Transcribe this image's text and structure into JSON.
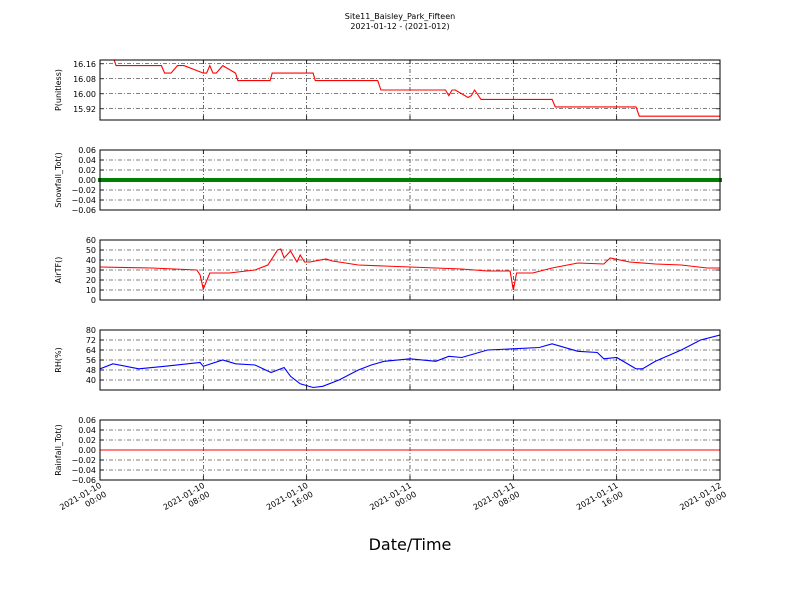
{
  "figure": {
    "title": "Site11_Baisley_Park_Fifteen",
    "subtitle": "2021-01-12 - (2021-012)",
    "xlabel": "Date/Time"
  },
  "x_axis": {
    "range": [
      "2021-01-10 00:00",
      "2021-01-12 00:00"
    ],
    "ticks": [
      {
        "line1": "2021-01-10",
        "line2": "00:00"
      },
      {
        "line1": "2021-01-10",
        "line2": "08:00"
      },
      {
        "line1": "2021-01-10",
        "line2": "16:00"
      },
      {
        "line1": "2021-01-11",
        "line2": "00:00"
      },
      {
        "line1": "2021-01-11",
        "line2": "08:00"
      },
      {
        "line1": "2021-01-11",
        "line2": "16:00"
      },
      {
        "line1": "2021-01-12",
        "line2": "00:00"
      }
    ]
  },
  "chart_data": [
    {
      "type": "line",
      "ylabel": "P(unitless)",
      "ylim": [
        15.86,
        16.18
      ],
      "yticks": [
        "16.16",
        "16.08",
        "16.00",
        "15.92"
      ],
      "ytick_values": [
        16.16,
        16.08,
        16.0,
        15.92
      ],
      "grid": true,
      "series": [
        {
          "color": "#ff0000",
          "x": [
            "2021-01-10 00:00",
            "2021-01-10 01:00",
            "2021-01-10 01:15",
            "2021-01-10 04:45",
            "2021-01-10 05:00",
            "2021-01-10 05:30",
            "2021-01-10 06:00",
            "2021-01-10 06:30",
            "2021-01-10 08:00",
            "2021-01-10 08:15",
            "2021-01-10 08:30",
            "2021-01-10 08:45",
            "2021-01-10 09:00",
            "2021-01-10 09:30",
            "2021-01-10 10:30",
            "2021-01-10 10:40",
            "2021-01-10 13:10",
            "2021-01-10 13:20",
            "2021-01-10 16:30",
            "2021-01-10 16:40",
            "2021-01-10 21:30",
            "2021-01-10 21:45",
            "2021-01-11 02:45",
            "2021-01-11 03:00",
            "2021-01-11 03:15",
            "2021-01-11 03:30",
            "2021-01-11 04:30",
            "2021-01-11 04:45",
            "2021-01-11 05:00",
            "2021-01-11 05:30",
            "2021-01-11 11:00",
            "2021-01-11 11:15",
            "2021-01-11 17:30",
            "2021-01-11 17:45",
            "2021-01-12 00:00"
          ],
          "values": [
            16.2,
            16.2,
            16.15,
            16.15,
            16.11,
            16.11,
            16.15,
            16.15,
            16.11,
            16.11,
            16.15,
            16.11,
            16.11,
            16.15,
            16.11,
            16.07,
            16.07,
            16.11,
            16.11,
            16.07,
            16.07,
            16.02,
            16.02,
            15.99,
            16.02,
            16.02,
            15.98,
            15.99,
            16.02,
            15.97,
            15.97,
            15.93,
            15.93,
            15.88,
            15.88
          ]
        }
      ]
    },
    {
      "type": "line",
      "ylabel": "Snowfall_Tot()",
      "ylim": [
        -0.06,
        0.06
      ],
      "yticks": [
        "0.06",
        "0.04",
        "0.02",
        "0.00",
        "−0.02",
        "−0.04",
        "−0.06"
      ],
      "ytick_values": [
        0.06,
        0.04,
        0.02,
        0.0,
        -0.02,
        -0.04,
        -0.06
      ],
      "grid": true,
      "series": [
        {
          "color": "#008000",
          "marker": "square",
          "x": [
            "2021-01-10 00:00",
            "2021-01-12 00:00"
          ],
          "values": [
            0.0,
            0.0
          ]
        }
      ]
    },
    {
      "type": "line",
      "ylabel": "AirTF()",
      "ylim": [
        0,
        60
      ],
      "yticks": [
        "60",
        "50",
        "40",
        "30",
        "20",
        "10",
        "0"
      ],
      "ytick_values": [
        60,
        50,
        40,
        30,
        20,
        10,
        0
      ],
      "grid": true,
      "series": [
        {
          "color": "#ff0000",
          "x": [
            "2021-01-10 00:00",
            "2021-01-10 04:00",
            "2021-01-10 07:30",
            "2021-01-10 07:45",
            "2021-01-10 08:00",
            "2021-01-10 08:30",
            "2021-01-10 10:00",
            "2021-01-10 12:00",
            "2021-01-10 13:00",
            "2021-01-10 13:45",
            "2021-01-10 14:00",
            "2021-01-10 14:15",
            "2021-01-10 14:45",
            "2021-01-10 15:15",
            "2021-01-10 15:30",
            "2021-01-10 15:50",
            "2021-01-10 16:15",
            "2021-01-10 17:30",
            "2021-01-10 18:00",
            "2021-01-10 20:00",
            "2021-01-11 00:00",
            "2021-01-11 04:00",
            "2021-01-11 06:00",
            "2021-01-11 07:45",
            "2021-01-11 08:00",
            "2021-01-11 08:15",
            "2021-01-11 09:30",
            "2021-01-11 11:00",
            "2021-01-11 13:00",
            "2021-01-11 15:00",
            "2021-01-11 15:30",
            "2021-01-11 17:00",
            "2021-01-11 19:00",
            "2021-01-11 21:00",
            "2021-01-11 23:00",
            "2021-01-12 00:00"
          ],
          "values": [
            33,
            32,
            30,
            25,
            11,
            27,
            27,
            30,
            35,
            50,
            51,
            42,
            49,
            38,
            45,
            38,
            38,
            41,
            39,
            35,
            33,
            31,
            29,
            29,
            10,
            27,
            27,
            32,
            37,
            36,
            42,
            38,
            36,
            35,
            32,
            32
          ]
        }
      ]
    },
    {
      "type": "line",
      "ylabel": "RH(%)",
      "ylim": [
        32,
        80
      ],
      "yticks": [
        "80",
        "72",
        "64",
        "56",
        "48",
        "40"
      ],
      "ytick_values": [
        80,
        72,
        64,
        56,
        48,
        40
      ],
      "grid": true,
      "series": [
        {
          "color": "#0000ff",
          "x": [
            "2021-01-10 00:00",
            "2021-01-10 01:00",
            "2021-01-10 03:00",
            "2021-01-10 05:00",
            "2021-01-10 07:45",
            "2021-01-10 08:00",
            "2021-01-10 09:30",
            "2021-01-10 10:30",
            "2021-01-10 12:00",
            "2021-01-10 13:15",
            "2021-01-10 14:15",
            "2021-01-10 14:45",
            "2021-01-10 15:30",
            "2021-01-10 16:30",
            "2021-01-10 17:15",
            "2021-01-10 18:30",
            "2021-01-10 20:00",
            "2021-01-10 21:00",
            "2021-01-10 22:00",
            "2021-01-11 00:00",
            "2021-01-11 02:00",
            "2021-01-11 03:00",
            "2021-01-11 04:00",
            "2021-01-11 06:00",
            "2021-01-11 08:00",
            "2021-01-11 10:00",
            "2021-01-11 11:00",
            "2021-01-11 13:00",
            "2021-01-11 14:30",
            "2021-01-11 15:00",
            "2021-01-11 16:00",
            "2021-01-11 17:30",
            "2021-01-11 18:00",
            "2021-01-11 19:00",
            "2021-01-11 21:00",
            "2021-01-11 22:30",
            "2021-01-12 00:00"
          ],
          "values": [
            49,
            53,
            49,
            51,
            54,
            51,
            56,
            53,
            52,
            46,
            50,
            43,
            37,
            34,
            35,
            40,
            48,
            52,
            55,
            57,
            55,
            59,
            58,
            64,
            65,
            66,
            69,
            63,
            62,
            57,
            58,
            49,
            49,
            55,
            64,
            72,
            76
          ]
        }
      ]
    },
    {
      "type": "line",
      "ylabel": "Rainfall_Tot()",
      "ylim": [
        -0.06,
        0.06
      ],
      "yticks": [
        "0.06",
        "0.04",
        "0.02",
        "0.00",
        "−0.02",
        "−0.04",
        "−0.06"
      ],
      "ytick_values": [
        0.06,
        0.04,
        0.02,
        0.0,
        -0.02,
        -0.04,
        -0.06
      ],
      "grid": true,
      "series": [
        {
          "color": "#ff0000",
          "x": [
            "2021-01-10 00:00",
            "2021-01-12 00:00"
          ],
          "values": [
            0.0,
            0.0
          ]
        }
      ]
    }
  ]
}
